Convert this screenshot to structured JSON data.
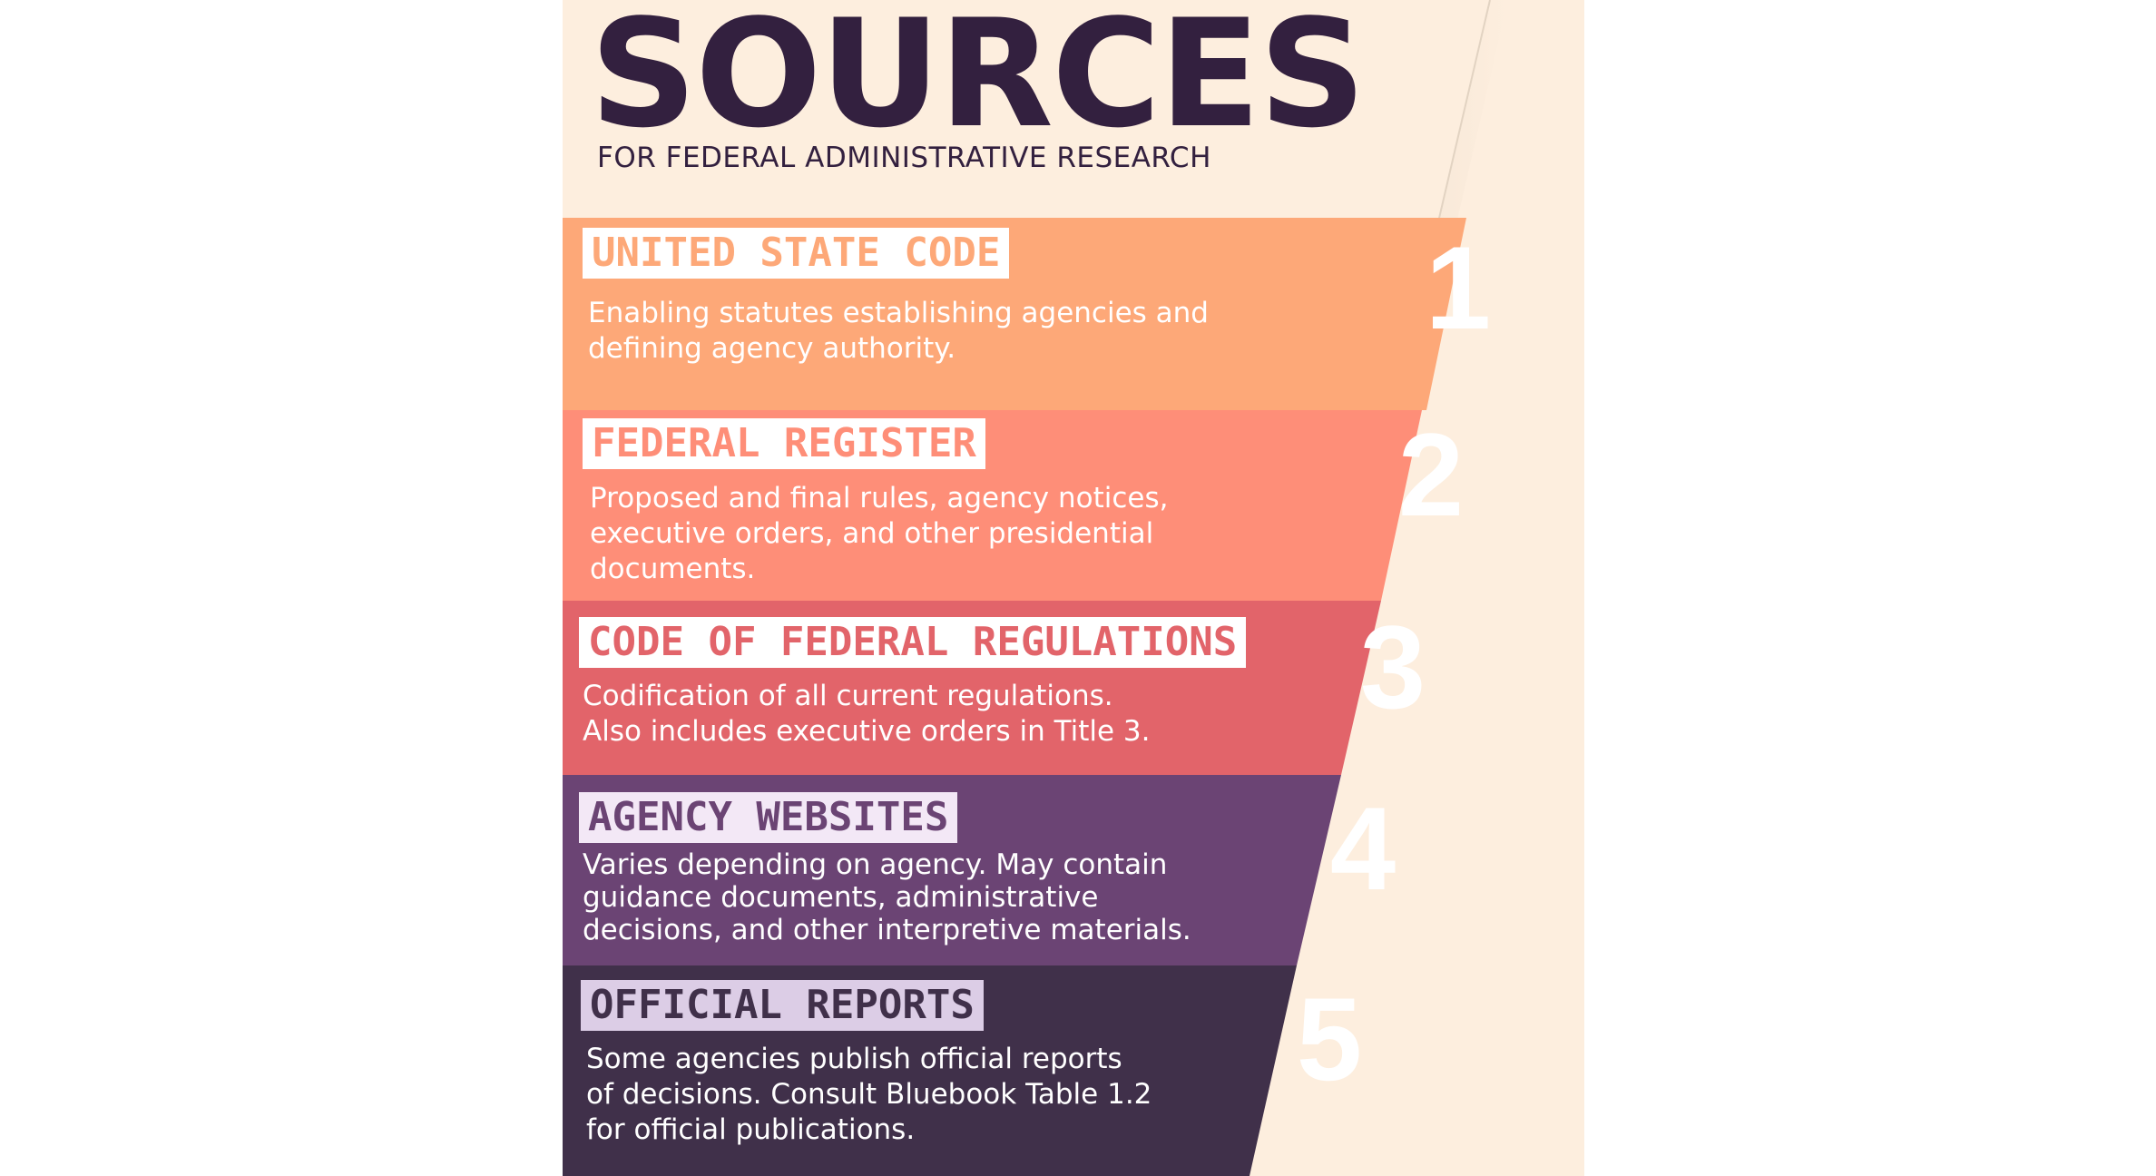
{
  "title": "SOURCES",
  "subtitle": "FOR FEDERAL ADMINISTRATIVE RESEARCH",
  "colors": {
    "background": "#fdeede",
    "text_dark": "#33203f",
    "source_1": "#fda878",
    "source_2": "#fe8e78",
    "source_3": "#e2646a",
    "source_4": "#6b4474",
    "source_5": "#40304a"
  },
  "sources": [
    {
      "number": "1",
      "heading": "UNITED STATE CODE",
      "desc_lines": [
        "Enabling statutes establishing agencies and",
        "defining agency authority."
      ]
    },
    {
      "number": "2",
      "heading": "FEDERAL REGISTER",
      "desc_lines": [
        "Proposed and final rules, agency notices,",
        "executive orders, and other presidential",
        "documents."
      ]
    },
    {
      "number": "3",
      "heading": "CODE OF FEDERAL REGULATIONS",
      "desc_lines": [
        "Codification of all current regulations.",
        "Also includes executive orders in Title 3."
      ]
    },
    {
      "number": "4",
      "heading": "AGENCY WEBSITES",
      "desc_lines": [
        "Varies depending on agency. May contain",
        "guidance documents, administrative",
        "decisions, and other interpretive materials."
      ]
    },
    {
      "number": "5",
      "heading": "OFFICIAL REPORTS",
      "desc_lines": [
        "Some agencies publish official reports",
        "of decisions. Consult Bluebook Table 1.2",
        "for official publications."
      ]
    }
  ]
}
